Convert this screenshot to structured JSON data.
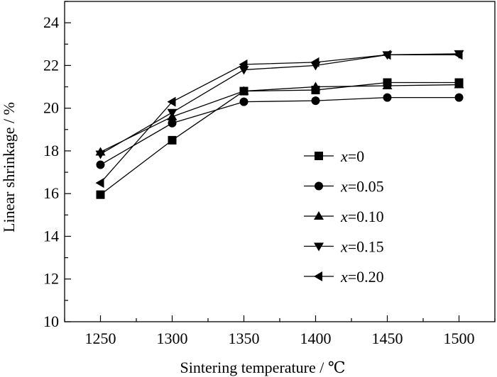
{
  "chart_data": {
    "type": "line",
    "xlabel": "Sintering temperature / ℃",
    "ylabel": "Linear shrinkage / %",
    "xlim": [
      1225,
      1525
    ],
    "ylim": [
      10,
      25
    ],
    "x_ticks": [
      1250,
      1300,
      1350,
      1400,
      1450,
      1500
    ],
    "y_ticks": [
      10,
      12,
      14,
      16,
      18,
      20,
      22,
      24
    ],
    "grid": false,
    "legend_position": "center-right",
    "x": [
      1250,
      1300,
      1350,
      1400,
      1450,
      1500
    ],
    "series": [
      {
        "name": "x=0",
        "var": "x",
        "value_text": "=0",
        "marker": "square",
        "values": [
          15.95,
          18.5,
          20.8,
          20.85,
          21.2,
          21.2
        ]
      },
      {
        "name": "x=0.05",
        "var": "x",
        "value_text": "=0.05",
        "marker": "circle",
        "values": [
          17.35,
          19.3,
          20.3,
          20.35,
          20.5,
          20.5
        ]
      },
      {
        "name": "x=0.10",
        "var": "x",
        "value_text": "=0.10",
        "marker": "triangle-up",
        "values": [
          17.95,
          19.6,
          20.8,
          21.0,
          21.05,
          21.1
        ]
      },
      {
        "name": "x=0.15",
        "var": "x",
        "value_text": "=0.15",
        "marker": "triangle-down",
        "values": [
          17.85,
          19.8,
          21.8,
          22.0,
          22.5,
          22.55
        ]
      },
      {
        "name": "x=0.20",
        "var": "x",
        "value_text": "=0.20",
        "marker": "triangle-left",
        "values": [
          16.5,
          20.3,
          22.05,
          22.15,
          22.5,
          22.5
        ]
      }
    ],
    "colors": {
      "line": "#000000",
      "marker": "#000000"
    }
  }
}
